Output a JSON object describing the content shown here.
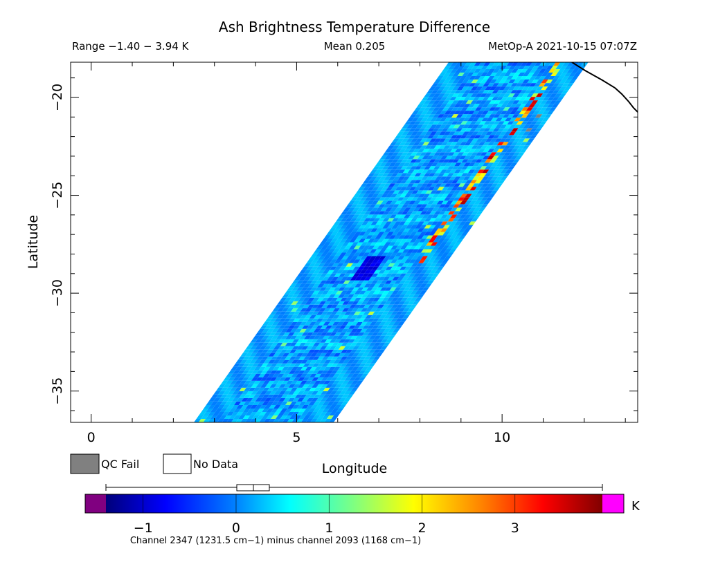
{
  "chart_data": {
    "type": "heatmap",
    "title": "Ash Brightness Temperature Difference",
    "subtitle_left": "Range −1.40 − 3.94 K",
    "subtitle_center": "Mean 0.205",
    "subtitle_right": "MetOp-A 2021-10-15 07:07Z",
    "xlabel": "Longitude",
    "ylabel": "Latitude",
    "xlim": [
      -0.5,
      13.3
    ],
    "ylim": [
      -36.6,
      -18.2
    ],
    "x_ticks": [
      0,
      5,
      10
    ],
    "x_tick_labels": [
      "0",
      "5",
      "10"
    ],
    "y_ticks": [
      -20,
      -25,
      -30,
      -35
    ],
    "y_tick_labels": [
      "−20",
      "−25",
      "−30",
      "−35"
    ],
    "swath": {
      "left_edge": [
        [
          2.5,
          -36.6
        ],
        [
          8.7,
          -18.2
        ]
      ],
      "right_edge": [
        [
          5.9,
          -36.6
        ],
        [
          12.1,
          -18.2
        ]
      ]
    },
    "colorbar": {
      "range": [
        -1.4,
        3.94
      ],
      "ticks": [
        -1,
        0,
        1,
        2,
        3
      ],
      "tick_labels": [
        "−1",
        "0",
        "1",
        "2",
        "3"
      ],
      "unit": "K",
      "label": "Channel 2347 (1231.5 cm−1) minus channel 2093 (1168 cm−1)",
      "underflow_color": "#800080",
      "overflow_color": "#ff00ff"
    },
    "legend": {
      "qc_fail": {
        "label": "QC Fail",
        "color": "#808080"
      },
      "no_data": {
        "label": "No Data",
        "color": "#ffffff"
      }
    }
  }
}
